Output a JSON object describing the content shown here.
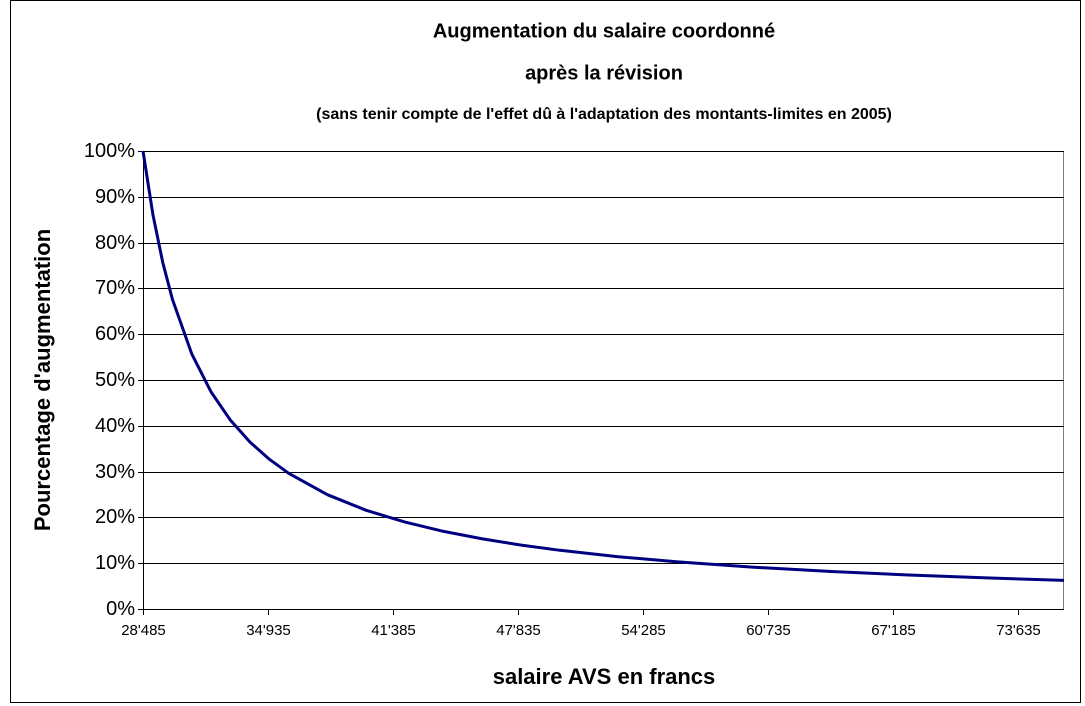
{
  "chart_data": {
    "type": "line",
    "title": "Augmentation du salaire coordonné",
    "subtitle": "après la révision",
    "annotation": "(sans tenir compte de l'effet dû à l'adaptation des montants-limites en 2005)",
    "x_label": "salaire AVS en francs",
    "y_label": "Pourcentage d'augmentation",
    "x": [
      28485,
      29000,
      29500,
      30000,
      31000,
      32000,
      33000,
      34000,
      35000,
      36000,
      38000,
      40000,
      42000,
      44000,
      46000,
      48000,
      50000,
      53000,
      56000,
      60000,
      64000,
      68000,
      72000,
      76000
    ],
    "series": [
      {
        "color": "#000080",
        "values": [
          100,
          86.0,
          75.72,
          67.63,
          55.72,
          47.38,
          41.21,
          36.46,
          32.7,
          29.63,
          24.96,
          21.56,
          18.97,
          16.94,
          15.3,
          13.96,
          12.82,
          11.43,
          10.32,
          9.13,
          8.18,
          7.42,
          6.78,
          6.25
        ]
      }
    ],
    "xlim": [
      28485,
      76000
    ],
    "xticks": [
      {
        "value": 28485,
        "label": "28'485"
      },
      {
        "value": 34935,
        "label": "34'935"
      },
      {
        "value": 41385,
        "label": "41'385"
      },
      {
        "value": 47835,
        "label": "47'835"
      },
      {
        "value": 54285,
        "label": "54'285"
      },
      {
        "value": 60735,
        "label": "60'735"
      },
      {
        "value": 67185,
        "label": "67'185"
      },
      {
        "value": 73635,
        "label": "73'635"
      }
    ],
    "ylim": [
      0,
      100
    ],
    "yticks": [
      {
        "value": 0,
        "label": "0%"
      },
      {
        "value": 10,
        "label": "10%"
      },
      {
        "value": 20,
        "label": "20%"
      },
      {
        "value": 30,
        "label": "30%"
      },
      {
        "value": 40,
        "label": "40%"
      },
      {
        "value": 50,
        "label": "50%"
      },
      {
        "value": 60,
        "label": "60%"
      },
      {
        "value": 70,
        "label": "70%"
      },
      {
        "value": 80,
        "label": "80%"
      },
      {
        "value": 90,
        "label": "90%"
      },
      {
        "value": 100,
        "label": "100%"
      }
    ],
    "grid": true
  }
}
